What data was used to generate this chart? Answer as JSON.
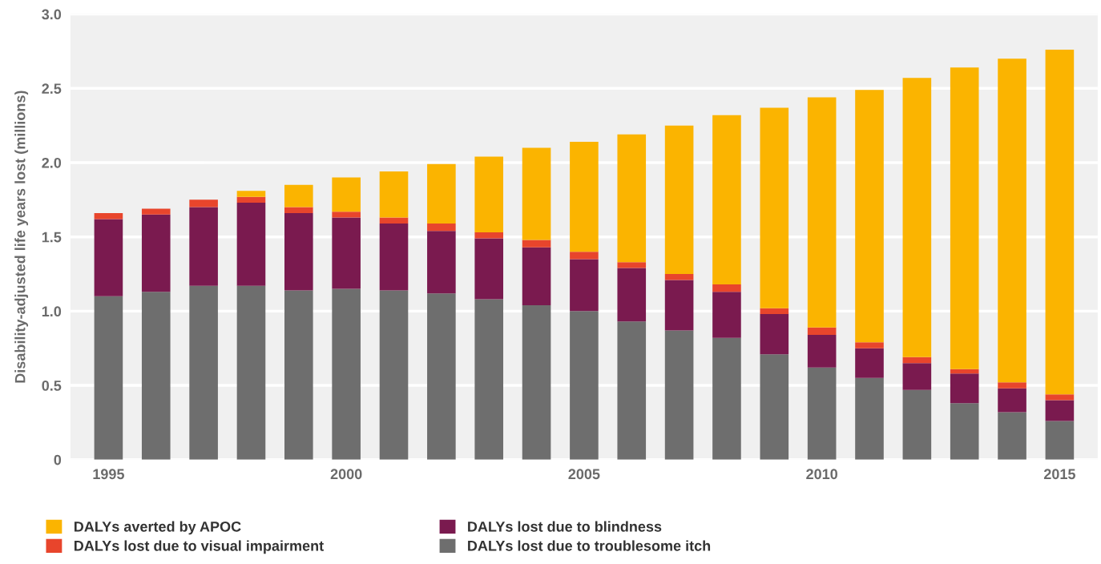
{
  "chart_data": {
    "type": "bar",
    "stacked": true,
    "ylabel": "Disability-adjusted life years lost (millions)",
    "x": [
      1995,
      1996,
      1997,
      1998,
      1999,
      2000,
      2001,
      2002,
      2003,
      2004,
      2005,
      2006,
      2007,
      2008,
      2009,
      2010,
      2011,
      2012,
      2013,
      2014,
      2015
    ],
    "series": [
      {
        "name": "DALYs lost due to troublesome itch",
        "color": "#6e6e6e",
        "values": [
          1.1,
          1.13,
          1.17,
          1.17,
          1.14,
          1.15,
          1.14,
          1.12,
          1.08,
          1.04,
          1.0,
          0.93,
          0.87,
          0.82,
          0.71,
          0.62,
          0.55,
          0.47,
          0.38,
          0.32,
          0.26
        ]
      },
      {
        "name": "DALYs lost due to blindness",
        "color": "#7a1a4f",
        "values": [
          0.52,
          0.52,
          0.53,
          0.56,
          0.52,
          0.48,
          0.45,
          0.42,
          0.41,
          0.39,
          0.35,
          0.36,
          0.34,
          0.31,
          0.27,
          0.22,
          0.2,
          0.18,
          0.2,
          0.16,
          0.14
        ]
      },
      {
        "name": "DALYs lost due to visual impairment",
        "color": "#e8452c",
        "values": [
          0.04,
          0.04,
          0.05,
          0.04,
          0.04,
          0.04,
          0.04,
          0.05,
          0.04,
          0.05,
          0.05,
          0.04,
          0.04,
          0.05,
          0.04,
          0.05,
          0.04,
          0.04,
          0.03,
          0.04,
          0.04
        ]
      },
      {
        "name": "DALYs averted by APOC",
        "color": "#fbb400",
        "values": [
          0,
          0,
          0,
          0.04,
          0.15,
          0.23,
          0.31,
          0.4,
          0.51,
          0.62,
          0.74,
          0.86,
          1.0,
          1.14,
          1.35,
          1.55,
          1.7,
          1.88,
          2.03,
          2.18,
          2.32
        ]
      }
    ],
    "xlim": [
      1994.2,
      2015.8
    ],
    "xticks": [
      1995,
      2000,
      2005,
      2010,
      2015
    ],
    "ylim": [
      0,
      3.0
    ],
    "yticks": [
      {
        "value": 0,
        "label": "0"
      },
      {
        "value": 0.5,
        "label": "0.5"
      },
      {
        "value": 1.0,
        "label": "1.0"
      },
      {
        "value": 1.5,
        "label": "1.5"
      },
      {
        "value": 2.0,
        "label": "2.0"
      },
      {
        "value": 2.5,
        "label": "2.5"
      },
      {
        "value": 3.0,
        "label": "3.0"
      }
    ],
    "grid": "y",
    "legend": "bottom"
  }
}
